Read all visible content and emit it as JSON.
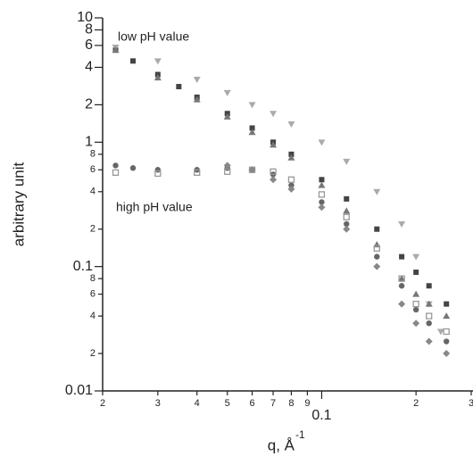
{
  "chart_data": {
    "type": "scatter",
    "ylabel": "arbitrary unit",
    "xlabel": "q, Å",
    "xlabel_sup": "-1",
    "annotations": [
      "low pH value",
      "high pH value"
    ],
    "xscale": "log",
    "yscale": "log",
    "xlim": [
      0.02,
      0.3
    ],
    "ylim": [
      0.01,
      10
    ],
    "xticks": [
      {
        "value": 0.02,
        "label": "2"
      },
      {
        "value": 0.03,
        "label": "3"
      },
      {
        "value": 0.04,
        "label": "4"
      },
      {
        "value": 0.05,
        "label": "5"
      },
      {
        "value": 0.06,
        "label": "6"
      },
      {
        "value": 0.07,
        "label": "7"
      },
      {
        "value": 0.08,
        "label": "8"
      },
      {
        "value": 0.09,
        "label": "9"
      },
      0.1,
      {
        "value": 0.2,
        "label": "2"
      },
      {
        "value": 0.3,
        "label": "3"
      }
    ],
    "yticks": [
      0.01,
      {
        "value": 0.02,
        "label": "2"
      },
      {
        "value": 0.04,
        "label": "4"
      },
      {
        "value": 0.06,
        "label": "6"
      },
      {
        "value": 0.08,
        "label": "8"
      },
      0.1,
      {
        "value": 0.2,
        "label": "2"
      },
      {
        "value": 0.4,
        "label": "4"
      },
      {
        "value": 0.6,
        "label": "6"
      },
      {
        "value": 0.8,
        "label": "8"
      },
      1,
      2,
      4,
      6,
      8,
      10
    ],
    "series": [
      {
        "color": "#444444",
        "marker": "square",
        "x": [
          0.022,
          0.025,
          0.03,
          0.035,
          0.04,
          0.05,
          0.06,
          0.07,
          0.08,
          0.1,
          0.12,
          0.15,
          0.18,
          0.2,
          0.22,
          0.25
        ],
        "values": [
          5.5,
          4.5,
          3.5,
          2.8,
          2.3,
          1.7,
          1.3,
          1.0,
          0.8,
          0.5,
          0.35,
          0.2,
          0.12,
          0.09,
          0.07,
          0.05
        ]
      },
      {
        "color": "#aaaaaa",
        "marker": "triangle-down",
        "x": [
          0.022,
          0.03,
          0.04,
          0.05,
          0.06,
          0.07,
          0.08,
          0.1,
          0.12,
          0.15,
          0.18,
          0.2,
          0.22,
          0.24
        ],
        "values": [
          5.8,
          4.5,
          3.2,
          2.5,
          2.0,
          1.7,
          1.4,
          1.0,
          0.7,
          0.4,
          0.22,
          0.12,
          0.05,
          0.03
        ]
      },
      {
        "color": "#777777",
        "marker": "triangle-up",
        "x": [
          0.022,
          0.03,
          0.04,
          0.05,
          0.06,
          0.07,
          0.08,
          0.1,
          0.12,
          0.15,
          0.18,
          0.2,
          0.22,
          0.25
        ],
        "values": [
          5.5,
          3.3,
          2.2,
          1.6,
          1.2,
          0.95,
          0.75,
          0.45,
          0.28,
          0.15,
          0.08,
          0.06,
          0.05,
          0.04
        ]
      },
      {
        "color": "#666666",
        "marker": "circle",
        "x": [
          0.022,
          0.025,
          0.03,
          0.04,
          0.05,
          0.06,
          0.07,
          0.08,
          0.1,
          0.12,
          0.15,
          0.18,
          0.2,
          0.22,
          0.25
        ],
        "values": [
          0.65,
          0.62,
          0.6,
          0.6,
          0.62,
          0.6,
          0.55,
          0.45,
          0.33,
          0.22,
          0.12,
          0.07,
          0.045,
          0.035,
          0.025
        ]
      },
      {
        "color": "#999999",
        "marker": "open-square",
        "x": [
          0.022,
          0.03,
          0.04,
          0.05,
          0.06,
          0.07,
          0.08,
          0.1,
          0.12,
          0.15,
          0.18,
          0.2,
          0.22,
          0.25
        ],
        "values": [
          0.57,
          0.56,
          0.57,
          0.58,
          0.6,
          0.58,
          0.5,
          0.38,
          0.25,
          0.14,
          0.08,
          0.05,
          0.04,
          0.03
        ]
      },
      {
        "color": "#888888",
        "marker": "diamond",
        "x": [
          0.05,
          0.06,
          0.07,
          0.08,
          0.1,
          0.12,
          0.15,
          0.18,
          0.2,
          0.22,
          0.25
        ],
        "values": [
          0.65,
          0.6,
          0.5,
          0.42,
          0.3,
          0.2,
          0.1,
          0.05,
          0.035,
          0.025,
          0.02
        ]
      }
    ]
  }
}
